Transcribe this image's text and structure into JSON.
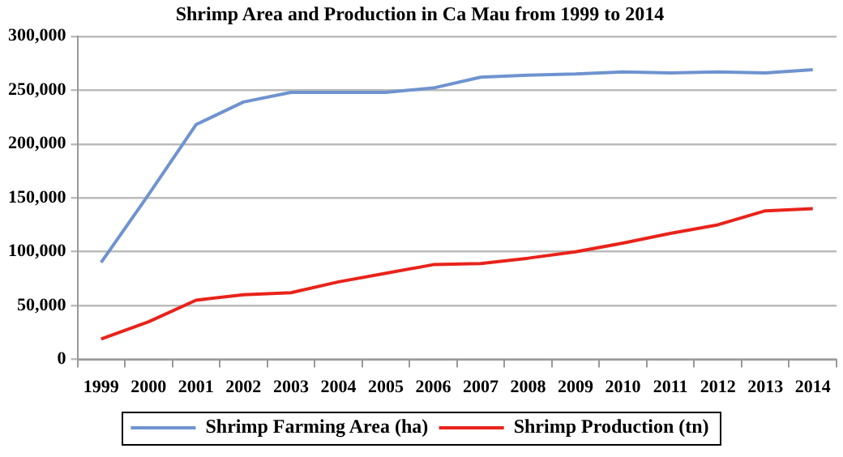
{
  "chart_data": {
    "type": "line",
    "title": "Shrimp Area and Production in Ca Mau from 1999 to 2014",
    "categories": [
      "1999",
      "2000",
      "2001",
      "2002",
      "2003",
      "2004",
      "2005",
      "2006",
      "2007",
      "2008",
      "2009",
      "2010",
      "2011",
      "2012",
      "2013",
      "2014"
    ],
    "series": [
      {
        "name": "Shrimp Farming Area (ha)",
        "color": "#6f93cf",
        "values": [
          90000,
          153000,
          218000,
          239000,
          248000,
          248000,
          248000,
          252000,
          262000,
          264000,
          265000,
          267000,
          266000,
          267000,
          266000,
          269000
        ]
      },
      {
        "name": "Shrimp Production (tn)",
        "color": "#e8231b",
        "values": [
          19000,
          35000,
          55000,
          60000,
          62000,
          72000,
          80000,
          88000,
          89000,
          94000,
          100000,
          108000,
          117000,
          125000,
          138000,
          140000
        ]
      }
    ],
    "ylim": [
      0,
      300000
    ],
    "yticks": [
      0,
      {
        "value": 50000,
        "label": "50,000"
      },
      {
        "value": 100000,
        "label": "100,000"
      },
      {
        "value": 150000,
        "label": "150,000"
      },
      {
        "value": 200000,
        "label": "200,000"
      },
      {
        "value": 250000,
        "label": "250,000"
      },
      {
        "value": 300000,
        "label": "300,000"
      }
    ],
    "grid": "y",
    "legend": "bottom",
    "marker": "none",
    "line_style": "solid"
  }
}
